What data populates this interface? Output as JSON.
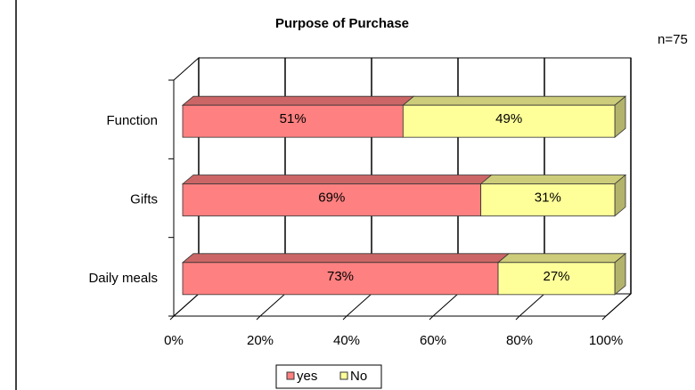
{
  "chart_data": {
    "type": "stacked_bar_horizontal",
    "title": "Purpose of Purchase",
    "annotation": "n=75",
    "categories": [
      "Function",
      "Gifts",
      "Daily meals"
    ],
    "series": [
      {
        "name": "yes",
        "color": "#ff8080",
        "values": [
          51,
          69,
          73
        ],
        "value_labels": [
          "51%",
          "69%",
          "73%"
        ]
      },
      {
        "name": "No",
        "color": "#ffff99",
        "values": [
          49,
          31,
          27
        ],
        "value_labels": [
          "49%",
          "31%",
          "27%"
        ]
      }
    ],
    "xlim": [
      0,
      100
    ],
    "xticks": [
      {
        "value": 0,
        "label": "0%"
      },
      {
        "value": 20,
        "label": "20%"
      },
      {
        "value": 40,
        "label": "40%"
      },
      {
        "value": 60,
        "label": "60%"
      },
      {
        "value": 80,
        "label": "80%"
      },
      {
        "value": 100,
        "label": "100%"
      }
    ],
    "grid": true,
    "legend": "bottom"
  }
}
